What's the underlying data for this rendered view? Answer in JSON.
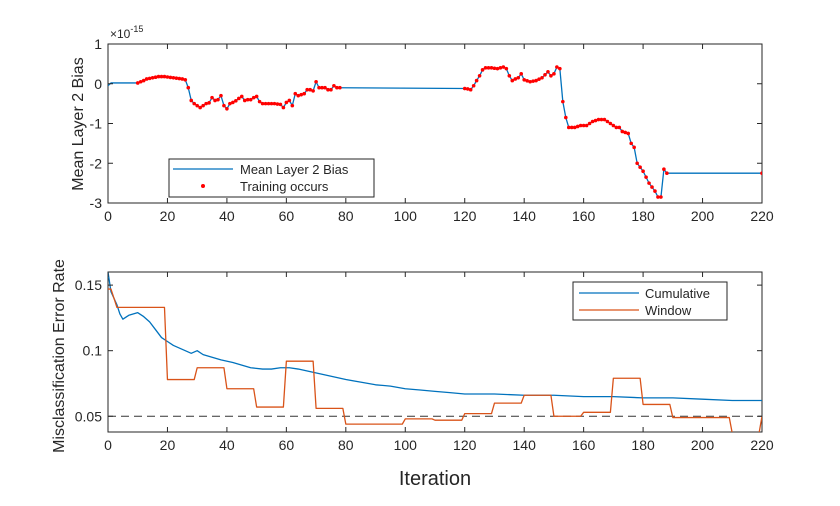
{
  "chart_data": [
    {
      "type": "line",
      "xlabel": "",
      "ylabel": "Mean Layer 2 Bias",
      "exponent_label": "×10",
      "exponent_power": "-15",
      "xlim": [
        0,
        220
      ],
      "ylim": [
        -3,
        1
      ],
      "xticks": [
        "0",
        "20",
        "40",
        "60",
        "80",
        "100",
        "120",
        "140",
        "160",
        "180",
        "200",
        "220"
      ],
      "yticks": [
        "1",
        "0",
        "-1",
        "-2",
        "-3"
      ],
      "legend_position": "bottom-left",
      "series": [
        {
          "name": "Mean Layer 2 Bias",
          "color": "#0072BD",
          "style": "line",
          "points": [
            [
              0,
              -0.05
            ],
            [
              1,
              0.02
            ],
            [
              10,
              0.02
            ],
            [
              11,
              0.05
            ],
            [
              12,
              0.08
            ],
            [
              13,
              0.12
            ],
            [
              15,
              0.15
            ],
            [
              17,
              0.18
            ],
            [
              19,
              0.18
            ],
            [
              21,
              0.16
            ],
            [
              23,
              0.14
            ],
            [
              25,
              0.12
            ],
            [
              26,
              0.1
            ],
            [
              27,
              -0.1
            ],
            [
              28,
              -0.42
            ],
            [
              29,
              -0.5
            ],
            [
              30,
              -0.55
            ],
            [
              31,
              -0.6
            ],
            [
              32,
              -0.55
            ],
            [
              33,
              -0.5
            ],
            [
              34,
              -0.48
            ],
            [
              35,
              -0.35
            ],
            [
              36,
              -0.42
            ],
            [
              37,
              -0.4
            ],
            [
              38,
              -0.3
            ],
            [
              39,
              -0.55
            ],
            [
              40,
              -0.63
            ],
            [
              41,
              -0.5
            ],
            [
              42,
              -0.47
            ],
            [
              43,
              -0.43
            ],
            [
              44,
              -0.37
            ],
            [
              45,
              -0.32
            ],
            [
              46,
              -0.42
            ],
            [
              47,
              -0.4
            ],
            [
              48,
              -0.4
            ],
            [
              49,
              -0.35
            ],
            [
              50,
              -0.32
            ],
            [
              51,
              -0.45
            ],
            [
              52,
              -0.5
            ],
            [
              54,
              -0.5
            ],
            [
              56,
              -0.5
            ],
            [
              58,
              -0.52
            ],
            [
              59,
              -0.6
            ],
            [
              60,
              -0.47
            ],
            [
              61,
              -0.42
            ],
            [
              62,
              -0.55
            ],
            [
              63,
              -0.25
            ],
            [
              64,
              -0.3
            ],
            [
              66,
              -0.25
            ],
            [
              67,
              -0.15
            ],
            [
              68,
              -0.15
            ],
            [
              69,
              -0.18
            ],
            [
              70,
              0.05
            ],
            [
              71,
              -0.1
            ],
            [
              73,
              -0.1
            ],
            [
              74,
              -0.15
            ],
            [
              75,
              -0.15
            ],
            [
              76,
              -0.05
            ],
            [
              77,
              -0.1
            ],
            [
              78,
              -0.1
            ],
            [
              120,
              -0.12
            ],
            [
              121,
              -0.13
            ],
            [
              122,
              -0.15
            ],
            [
              123,
              -0.05
            ],
            [
              124,
              0.08
            ],
            [
              125,
              0.2
            ],
            [
              126,
              0.35
            ],
            [
              127,
              0.4
            ],
            [
              129,
              0.4
            ],
            [
              131,
              0.38
            ],
            [
              133,
              0.42
            ],
            [
              134,
              0.38
            ],
            [
              135,
              0.2
            ],
            [
              136,
              0.08
            ],
            [
              137,
              0.12
            ],
            [
              138,
              0.15
            ],
            [
              139,
              0.25
            ],
            [
              140,
              0.1
            ],
            [
              142,
              0.05
            ],
            [
              144,
              0.08
            ],
            [
              146,
              0.15
            ],
            [
              148,
              0.3
            ],
            [
              149,
              0.2
            ],
            [
              150,
              0.25
            ],
            [
              151,
              0.42
            ],
            [
              152,
              0.38
            ],
            [
              153,
              -0.45
            ],
            [
              154,
              -0.85
            ],
            [
              155,
              -1.1
            ],
            [
              157,
              -1.1
            ],
            [
              159,
              -1.05
            ],
            [
              161,
              -1.05
            ],
            [
              163,
              -0.95
            ],
            [
              165,
              -0.9
            ],
            [
              167,
              -0.9
            ],
            [
              169,
              -1.0
            ],
            [
              171,
              -1.1
            ],
            [
              172,
              -1.1
            ],
            [
              173,
              -1.2
            ],
            [
              175,
              -1.25
            ],
            [
              176,
              -1.5
            ],
            [
              177,
              -1.6
            ],
            [
              178,
              -2.0
            ],
            [
              180,
              -2.2
            ],
            [
              182,
              -2.5
            ],
            [
              184,
              -2.7
            ],
            [
              185,
              -2.85
            ],
            [
              186,
              -2.85
            ],
            [
              187,
              -2.15
            ],
            [
              188,
              -2.25
            ],
            [
              220,
              -2.25
            ]
          ]
        },
        {
          "name": "Training occurs",
          "color": "#FF0000",
          "style": "markers",
          "x_ranges": [
            [
              10,
              27
            ],
            [
              28,
              78
            ],
            [
              120,
              152
            ],
            [
              153,
              188
            ],
            [
              220,
              220
            ]
          ]
        }
      ]
    },
    {
      "type": "line",
      "xlabel": "Iteration",
      "ylabel": "Misclassification Error Rate",
      "xlim": [
        0,
        220
      ],
      "ylim": [
        0.038,
        0.16
      ],
      "xticks": [
        "0",
        "20",
        "40",
        "60",
        "80",
        "100",
        "120",
        "140",
        "160",
        "180",
        "200",
        "220"
      ],
      "yticks": [
        "0.15",
        "0.1",
        "0.05"
      ],
      "yticks_values": [
        0.15,
        0.1,
        0.05
      ],
      "reference_line": 0.05,
      "legend_position": "top-right",
      "series": [
        {
          "name": "Cumulative",
          "color": "#0072BD",
          "points": [
            [
              0,
              0.16
            ],
            [
              1,
              0.145
            ],
            [
              2,
              0.14
            ],
            [
              3,
              0.135
            ],
            [
              4,
              0.128
            ],
            [
              5,
              0.124
            ],
            [
              7,
              0.127
            ],
            [
              10,
              0.129
            ],
            [
              12,
              0.126
            ],
            [
              14,
              0.122
            ],
            [
              16,
              0.116
            ],
            [
              18,
              0.11
            ],
            [
              20,
              0.107
            ],
            [
              22,
              0.104
            ],
            [
              24,
              0.102
            ],
            [
              26,
              0.1
            ],
            [
              28,
              0.098
            ],
            [
              30,
              0.1
            ],
            [
              32,
              0.097
            ],
            [
              35,
              0.095
            ],
            [
              38,
              0.093
            ],
            [
              42,
              0.091
            ],
            [
              45,
              0.089
            ],
            [
              48,
              0.087
            ],
            [
              52,
              0.086
            ],
            [
              55,
              0.086
            ],
            [
              58,
              0.087
            ],
            [
              61,
              0.087
            ],
            [
              64,
              0.086
            ],
            [
              68,
              0.084
            ],
            [
              72,
              0.082
            ],
            [
              76,
              0.08
            ],
            [
              80,
              0.078
            ],
            [
              85,
              0.076
            ],
            [
              90,
              0.074
            ],
            [
              95,
              0.073
            ],
            [
              100,
              0.071
            ],
            [
              105,
              0.07
            ],
            [
              110,
              0.069
            ],
            [
              115,
              0.068
            ],
            [
              120,
              0.067
            ],
            [
              130,
              0.067
            ],
            [
              140,
              0.066
            ],
            [
              150,
              0.066
            ],
            [
              160,
              0.065
            ],
            [
              170,
              0.065
            ],
            [
              180,
              0.064
            ],
            [
              190,
              0.064
            ],
            [
              200,
              0.063
            ],
            [
              210,
              0.062
            ],
            [
              220,
              0.062
            ]
          ]
        },
        {
          "name": "Window",
          "color": "#D95319",
          "points": [
            [
              0,
              0.147
            ],
            [
              1,
              0.147
            ],
            [
              2,
              0.14
            ],
            [
              3,
              0.133
            ],
            [
              19,
              0.133
            ],
            [
              20,
              0.078
            ],
            [
              29,
              0.078
            ],
            [
              30,
              0.087
            ],
            [
              39,
              0.087
            ],
            [
              40,
              0.071
            ],
            [
              49,
              0.071
            ],
            [
              50,
              0.057
            ],
            [
              59,
              0.057
            ],
            [
              60,
              0.092
            ],
            [
              69,
              0.092
            ],
            [
              70,
              0.056
            ],
            [
              79,
              0.056
            ],
            [
              80,
              0.044
            ],
            [
              99,
              0.044
            ],
            [
              100,
              0.048
            ],
            [
              109,
              0.048
            ],
            [
              110,
              0.047
            ],
            [
              119,
              0.047
            ],
            [
              120,
              0.052
            ],
            [
              129,
              0.052
            ],
            [
              130,
              0.06
            ],
            [
              139,
              0.06
            ],
            [
              140,
              0.066
            ],
            [
              149,
              0.066
            ],
            [
              150,
              0.05
            ],
            [
              159,
              0.05
            ],
            [
              160,
              0.053
            ],
            [
              169,
              0.053
            ],
            [
              170,
              0.079
            ],
            [
              179,
              0.079
            ],
            [
              180,
              0.059
            ],
            [
              189,
              0.059
            ],
            [
              190,
              0.049
            ],
            [
              209,
              0.049
            ],
            [
              210,
              0.037
            ],
            [
              219,
              0.037
            ],
            [
              220,
              0.05
            ]
          ]
        }
      ]
    }
  ]
}
